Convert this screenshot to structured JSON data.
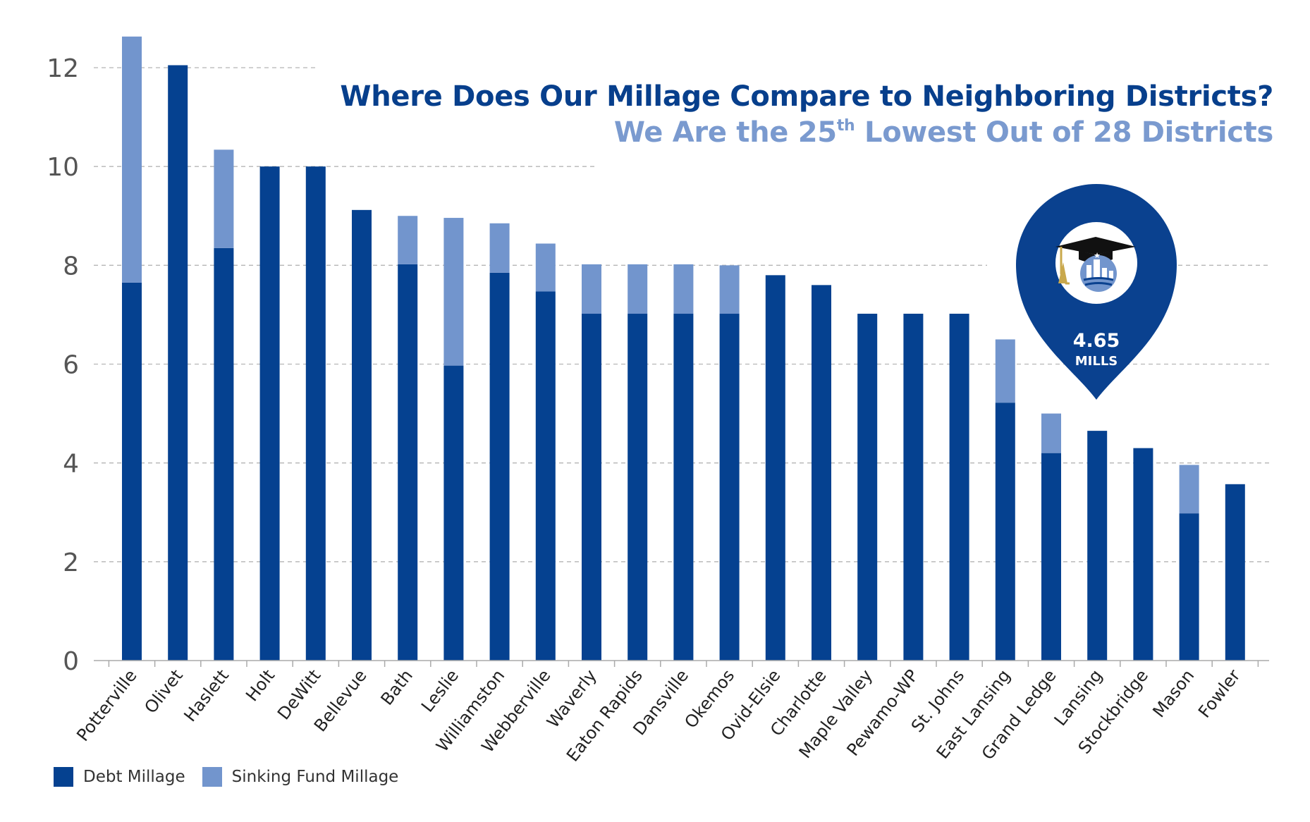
{
  "title": "Where Does Our Millage Compare to Neighboring Districts?",
  "subtitle": {
    "prefix": "We Are the 25",
    "superscript": "th",
    "suffix": " Lowest Out of 28 Districts"
  },
  "callout": {
    "value": "4.65",
    "unit": "MILLS",
    "district": "Lansing"
  },
  "colors": {
    "debt": "#054190",
    "sinking": "#7295cd",
    "title": "#073f8c",
    "subtitle": "#7a9acf",
    "grid": "#b5b5b5",
    "axis_text": "#555555"
  },
  "legend": [
    {
      "label": "Debt Millage",
      "color": "#054190"
    },
    {
      "label": "Sinking Fund Millage",
      "color": "#7295cd"
    }
  ],
  "chart_data": {
    "type": "bar",
    "stacked": true,
    "title": "Where Does Our Millage Compare to Neighboring Districts?",
    "categories": [
      "Potterville",
      "Olivet",
      "Haslett",
      "Holt",
      "DeWitt",
      "Bellevue",
      "Bath",
      "Leslie",
      "Williamston",
      "Webberville",
      "Waverly",
      "Eaton Rapids",
      "Dansville",
      "Okemos",
      "Ovid-Elsie",
      "Charlotte",
      "Maple Valley",
      "Pewamo-WP",
      "St. Johns",
      "East Lansing",
      "Grand Ledge",
      "Lansing",
      "Stockbridge",
      "Mason",
      "Fowler"
    ],
    "series": [
      {
        "name": "Debt Millage",
        "values": [
          7.65,
          12.05,
          8.35,
          10.0,
          10.0,
          9.12,
          8.02,
          5.97,
          7.85,
          7.47,
          7.02,
          7.02,
          7.02,
          7.02,
          7.8,
          7.6,
          7.02,
          7.02,
          7.02,
          5.22,
          4.2,
          4.65,
          4.3,
          2.98,
          3.57
        ]
      },
      {
        "name": "Sinking Fund Millage",
        "values": [
          4.98,
          0,
          1.99,
          0,
          0,
          0,
          0.98,
          2.99,
          1.0,
          0.97,
          1.0,
          1.0,
          1.0,
          0.98,
          0,
          0,
          0,
          0,
          0,
          1.28,
          0.8,
          0,
          0,
          0.98,
          0
        ]
      }
    ],
    "yticks": [
      0,
      2,
      4,
      6,
      8,
      10,
      12
    ],
    "ylim": [
      0,
      12.65
    ],
    "grid": "dashed horizontal",
    "legend_position": "bottom-left"
  }
}
